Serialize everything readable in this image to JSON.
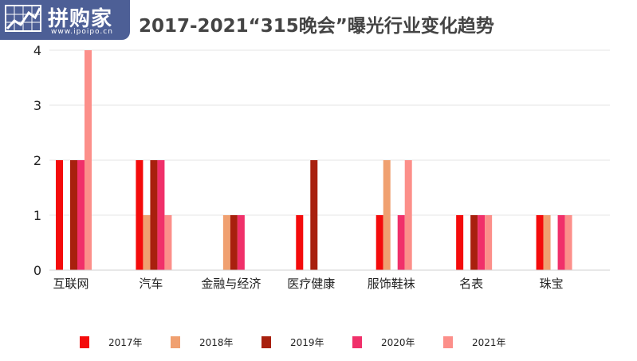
{
  "logo": {
    "text": "拼购家",
    "url": "www.ipoipo.cn",
    "bg_color": "#4d5f96"
  },
  "title": "2017-2021“315晚会”曝光行业变化趋势",
  "chart_data": {
    "type": "bar",
    "title": "2017-2021“315晚会”曝光行业变化趋势",
    "xlabel": "",
    "ylabel": "",
    "ylim": [
      0,
      4
    ],
    "yticks": [
      0,
      1,
      2,
      3,
      4
    ],
    "grid": true,
    "legend_position": "bottom",
    "categories": [
      "互联网",
      "汽车",
      "金融与经济",
      "医疗健康",
      "服饰鞋袜",
      "名表",
      "珠宝"
    ],
    "series": [
      {
        "name": "2017年",
        "color": "#f40b0b",
        "values": [
          2,
          2,
          0,
          1,
          1,
          1,
          1
        ]
      },
      {
        "name": "2018年",
        "color": "#f0a070",
        "values": [
          0,
          1,
          1,
          0,
          2,
          0,
          1
        ]
      },
      {
        "name": "2019年",
        "color": "#a8200e",
        "values": [
          2,
          2,
          1,
          2,
          0,
          1,
          0
        ]
      },
      {
        "name": "2020年",
        "color": "#f0306a",
        "values": [
          2,
          2,
          1,
          0,
          1,
          1,
          1
        ]
      },
      {
        "name": "2021年",
        "color": "#fc8f8a",
        "values": [
          4,
          1,
          0,
          0,
          2,
          1,
          1
        ]
      }
    ]
  }
}
